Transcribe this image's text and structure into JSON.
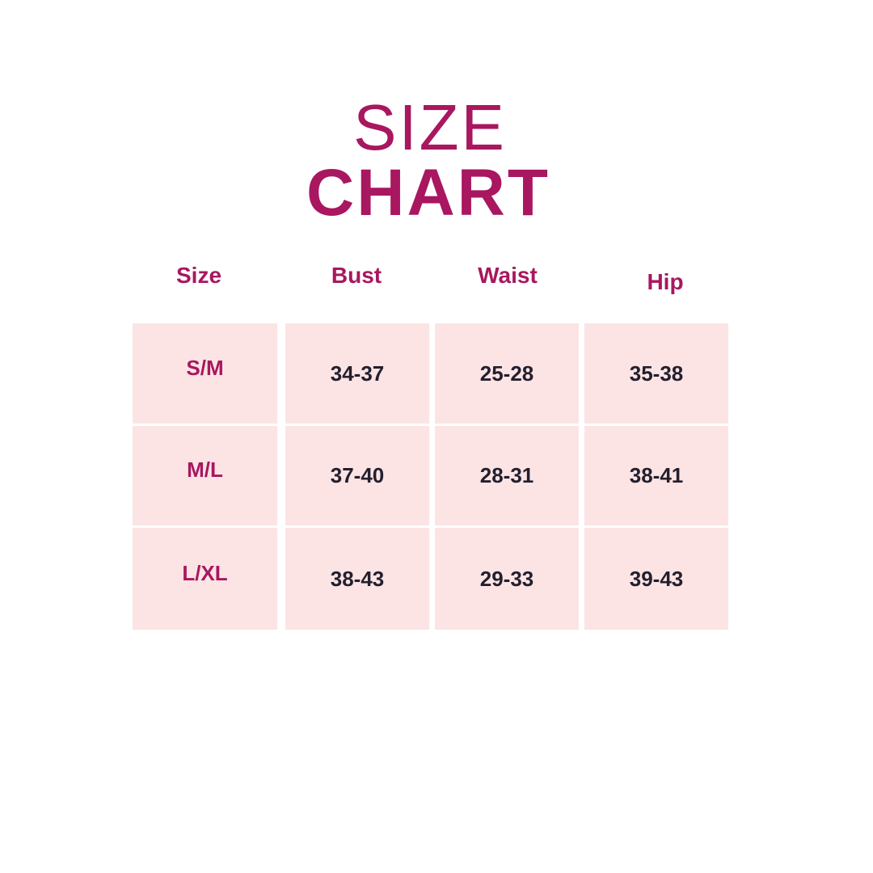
{
  "title": {
    "line1": "SIZE",
    "line2": "CHART"
  },
  "colors": {
    "accent": "#a8175f",
    "cell_bg": "#fce4e4",
    "value_text": "#231f2e"
  },
  "table": {
    "headers": [
      "Size",
      "Bust",
      "Waist",
      "Hip"
    ],
    "rows": [
      [
        "S/M",
        "34-37",
        "25-28",
        "35-38"
      ],
      [
        "M/L",
        "37-40",
        "28-31",
        "38-41"
      ],
      [
        "L/XL",
        "38-43",
        "29-33",
        "39-43"
      ]
    ]
  }
}
